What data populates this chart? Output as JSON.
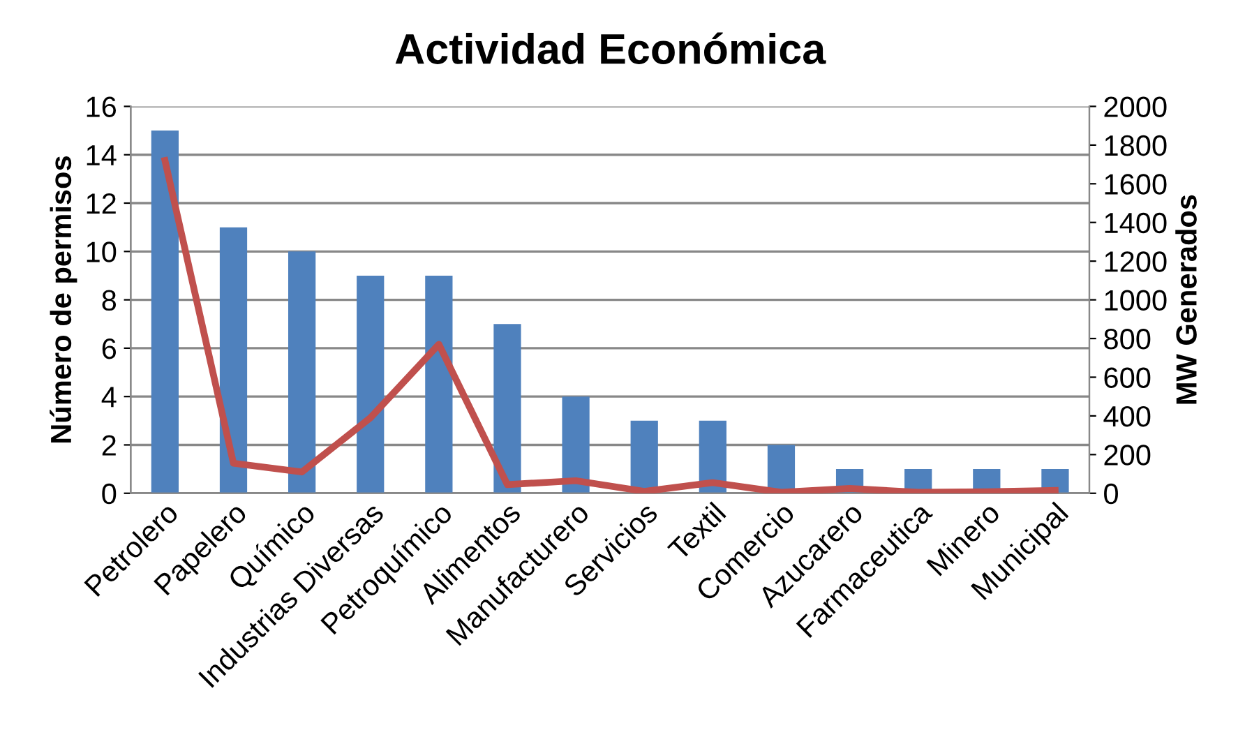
{
  "chart_data": {
    "type": "bar",
    "title": "Actividad Económica",
    "ylabel": "Número de permisos",
    "y2label": "MW Generados",
    "categories": [
      "Petrolero",
      "Papelero",
      "Químico",
      "Industrias Diversas",
      "Petroquímico",
      "Alimentos",
      "Manufacturero",
      "Servicios",
      "Textil",
      "Comercio",
      "Azucarero",
      "Farmaceutica",
      "Minero",
      "Municipal"
    ],
    "series": [
      {
        "color": "#4f81bd",
        "values": [
          15,
          11,
          10,
          9,
          9,
          7,
          4,
          3,
          3,
          2,
          1,
          1,
          1,
          1
        ]
      },
      {
        "type": "line",
        "axis": "y2",
        "color": "#c0504d",
        "values": [
          1720,
          155,
          110,
          390,
          770,
          45,
          65,
          10,
          55,
          5,
          25,
          5,
          8,
          15
        ]
      }
    ],
    "ylim": [
      0,
      16
    ],
    "yticks": [
      0,
      2,
      4,
      6,
      8,
      10,
      12,
      14,
      16
    ],
    "y2lim": [
      0,
      2000
    ],
    "y2ticks": [
      0,
      200,
      400,
      600,
      800,
      1000,
      1200,
      1400,
      1600,
      1800,
      2000
    ],
    "grid": "y",
    "legend": false
  }
}
